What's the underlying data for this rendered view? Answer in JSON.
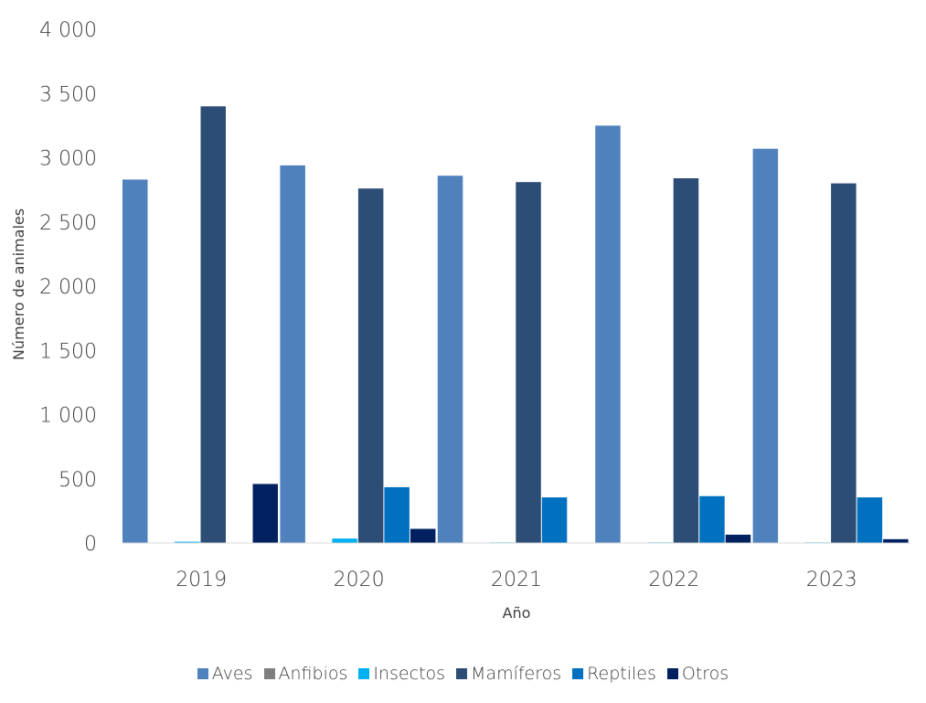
{
  "chart_data": {
    "type": "bar",
    "categories": [
      "2019",
      "2020",
      "2021",
      "2022",
      "2023"
    ],
    "series": [
      {
        "name": "Aves",
        "color": "#4f81bd",
        "values": [
          2830,
          2940,
          2860,
          3250,
          3070
        ]
      },
      {
        "name": "Anfibios",
        "color": "#7f7f7f",
        "values": [
          0,
          0,
          0,
          0,
          0
        ]
      },
      {
        "name": "Insectos",
        "color": "#00b0f0",
        "values": [
          10,
          35,
          5,
          5,
          5
        ]
      },
      {
        "name": "Mamíferos",
        "color": "#2c4d75",
        "values": [
          3400,
          2760,
          2810,
          2840,
          2800
        ]
      },
      {
        "name": "Reptiles",
        "color": "#0070c0",
        "values": [
          0,
          435,
          355,
          365,
          355
        ]
      },
      {
        "name": "Otros",
        "color": "#002060",
        "values": [
          460,
          110,
          0,
          65,
          30
        ]
      }
    ],
    "title": "",
    "xlabel": "Año",
    "ylabel": "Número de animales",
    "ylim": [
      0,
      4000
    ],
    "yticks": [
      0,
      500,
      1000,
      1500,
      2000,
      2500,
      3000,
      3500,
      4000
    ],
    "ytick_labels": [
      "0",
      "500",
      "1 000",
      "1 500",
      "2 000",
      "2 500",
      "3 000",
      "3 500",
      "4 000"
    ],
    "grid": false,
    "legend_position": "bottom"
  }
}
